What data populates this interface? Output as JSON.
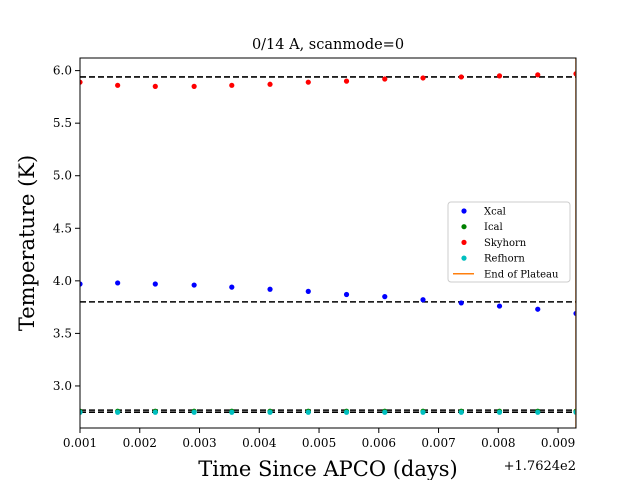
{
  "chart_data": {
    "type": "scatter",
    "title": "0/14 A, scanmode=0",
    "xlabel": "Time Since APCO (days)",
    "ylabel": "Temperature (K)",
    "x_offset_label": "+1.7624e2",
    "xlim": [
      0.001,
      0.0093
    ],
    "ylim": [
      2.6,
      6.12
    ],
    "x_ticks": [
      0.001,
      0.002,
      0.003,
      0.004,
      0.005,
      0.006,
      0.007,
      0.008,
      0.009
    ],
    "x_tick_labels": [
      "0.001",
      "0.002",
      "0.003",
      "0.004",
      "0.005",
      "0.006",
      "0.007",
      "0.008",
      "0.009"
    ],
    "y_ticks": [
      3.0,
      3.5,
      4.0,
      4.5,
      5.0,
      5.5,
      6.0
    ],
    "y_tick_labels": [
      "3.0",
      "3.5",
      "4.0",
      "4.5",
      "5.0",
      "5.5",
      "6.0"
    ],
    "grid": false,
    "legend_position": "center-right",
    "x": [
      0.001,
      0.00163,
      0.00226,
      0.00291,
      0.00354,
      0.00418,
      0.00482,
      0.00546,
      0.0061,
      0.00674,
      0.00738,
      0.00802,
      0.00866,
      0.0093
    ],
    "series": [
      {
        "name": "Xcal",
        "color": "#0000ff",
        "values": [
          3.97,
          3.98,
          3.97,
          3.96,
          3.94,
          3.92,
          3.9,
          3.87,
          3.85,
          3.82,
          3.79,
          3.76,
          3.73,
          3.69
        ]
      },
      {
        "name": "Ical",
        "color": "#008000",
        "values": [
          2.76,
          2.76,
          2.76,
          2.76,
          2.76,
          2.76,
          2.76,
          2.76,
          2.76,
          2.76,
          2.76,
          2.76,
          2.76,
          2.76
        ]
      },
      {
        "name": "Skyhorn",
        "color": "#ff0000",
        "values": [
          5.89,
          5.86,
          5.85,
          5.85,
          5.86,
          5.87,
          5.89,
          5.9,
          5.92,
          5.93,
          5.94,
          5.95,
          5.96,
          5.97
        ]
      },
      {
        "name": "Refhorn",
        "color": "#00bfbf",
        "values": [
          2.75,
          2.75,
          2.75,
          2.75,
          2.75,
          2.75,
          2.75,
          2.75,
          2.75,
          2.75,
          2.75,
          2.75,
          2.75,
          2.75
        ]
      }
    ],
    "reference_lines": [
      5.94,
      3.8,
      2.77,
      2.75
    ],
    "end_of_plateau": {
      "name": "End of Plateau",
      "color": "#ff7f0e",
      "x": 0.0093
    }
  }
}
